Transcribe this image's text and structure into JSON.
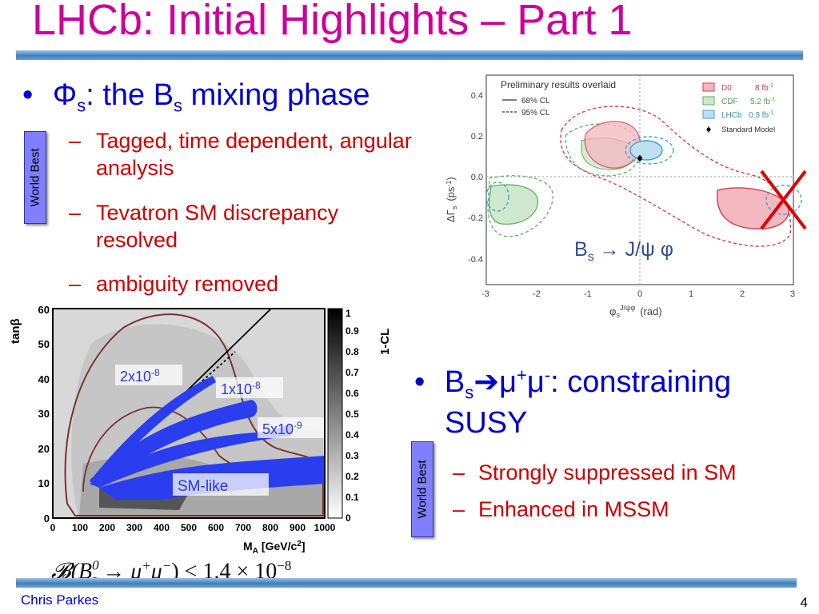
{
  "slide": {
    "title": "LHCb: Initial Highlights – Part 1",
    "footer_author": "Chris Parkes",
    "page_number": "4",
    "badge_text": "World Best"
  },
  "section1": {
    "bullet_prefix": "Φ",
    "bullet_prefix_sub": "s",
    "bullet_mid": ": the B",
    "bullet_mid_sub": "s",
    "bullet_tail": " mixing phase",
    "subs": [
      "Tagged, time dependent, angular analysis",
      "Tevatron SM discrepancy resolved",
      "ambiguity removed"
    ]
  },
  "section2": {
    "bullet_pre": "B",
    "bullet_pre_sub": "s",
    "bullet_arrow": "➔",
    "bullet_mu": "μ",
    "bullet_mu_sup1": "+",
    "bullet_mu2": "μ",
    "bullet_mu_sup2": "-",
    "bullet_tail": ": constraining",
    "bullet_line2": "SUSY",
    "subs": [
      "Strongly suppressed in SM",
      "Enhanced in MSSM"
    ]
  },
  "plot1": {
    "legend_title": "Preliminary results overlaid",
    "legend_68": "68% CL",
    "legend_95": "95% CL",
    "legend_d0": "D0",
    "legend_d0_lumi": "8 fb",
    "legend_cdf": "CDF",
    "legend_cdf_lumi": "5.2 fb",
    "legend_lhcb": "LHCb",
    "legend_lhcb_lumi": "0.3 fb",
    "legend_lumi_sup": "-1",
    "legend_sm": "Standard Model",
    "label_Bs": "B",
    "label_Bs_sub": "s",
    "label_decay": " → J/ψ φ",
    "x_label": "φ",
    "x_label_sub": "s",
    "x_label_sup": "J/ψφ",
    "x_label_unit": "(rad)",
    "y_label": "ΔΓ",
    "y_label_sub": "s",
    "y_label_unit": "(ps",
    "y_label_sup": "-1",
    "y_label_close": ")",
    "x_ticks": [
      "-3",
      "-2",
      "-1",
      "0",
      "1",
      "2",
      "3"
    ],
    "y_ticks": [
      "0.4",
      "0.2",
      "0.0",
      "-0.2",
      "-0.4"
    ]
  },
  "plot2": {
    "y_label": "tanβ",
    "x_label": "M",
    "x_label_sub": "A",
    "x_label_unit": "[GeV/c",
    "x_label_sup": "2",
    "x_label_close": "]",
    "cbar_label": "1-CL",
    "x_ticks": [
      "0",
      "100",
      "200",
      "300",
      "400",
      "500",
      "600",
      "700",
      "800",
      "900",
      "1000"
    ],
    "y_ticks": [
      "60",
      "50",
      "40",
      "30",
      "20",
      "10",
      "0"
    ],
    "cbar_ticks": [
      "1",
      "0.9",
      "0.8",
      "0.7",
      "0.6",
      "0.5",
      "0.4",
      "0.3",
      "0.2",
      "0.1",
      "0"
    ],
    "band_labels": [
      "2x10",
      "1x10",
      "5x10",
      "SM-like"
    ],
    "band_exps": [
      "-8",
      "-8",
      "-9",
      ""
    ]
  },
  "formula": {
    "prefix": "𝓑(B",
    "sup": "0",
    "sub": "s",
    "rest": " → μ",
    "mu_sup": "+",
    "mu2": "μ",
    "mu_sup2": "−",
    "tail": ") < 1.4 × 10",
    "exp": "−8"
  },
  "chart_data": [
    {
      "type": "contour",
      "x": [
        "-3",
        "-2",
        "-1",
        "0",
        "1",
        "2",
        "3"
      ],
      "y": [
        "0.4",
        "0.2",
        "0.0",
        "-0.2",
        "-0.4"
      ],
      "xlim": [
        -3,
        3
      ],
      "ylim": [
        -0.5,
        0.5
      ],
      "series": [
        {
          "name": "D0",
          "color": "#e06070"
        },
        {
          "name": "CDF",
          "color": "#60b060"
        },
        {
          "name": "LHCb",
          "color": "#40a0d0"
        },
        {
          "name": "Standard Model",
          "point": [
            0.0,
            0.09
          ]
        }
      ]
    },
    {
      "type": "heatmap",
      "xlim": [
        0,
        1000
      ],
      "ylim": [
        0,
        60
      ],
      "colorbar_range": [
        0,
        1
      ]
    }
  ]
}
